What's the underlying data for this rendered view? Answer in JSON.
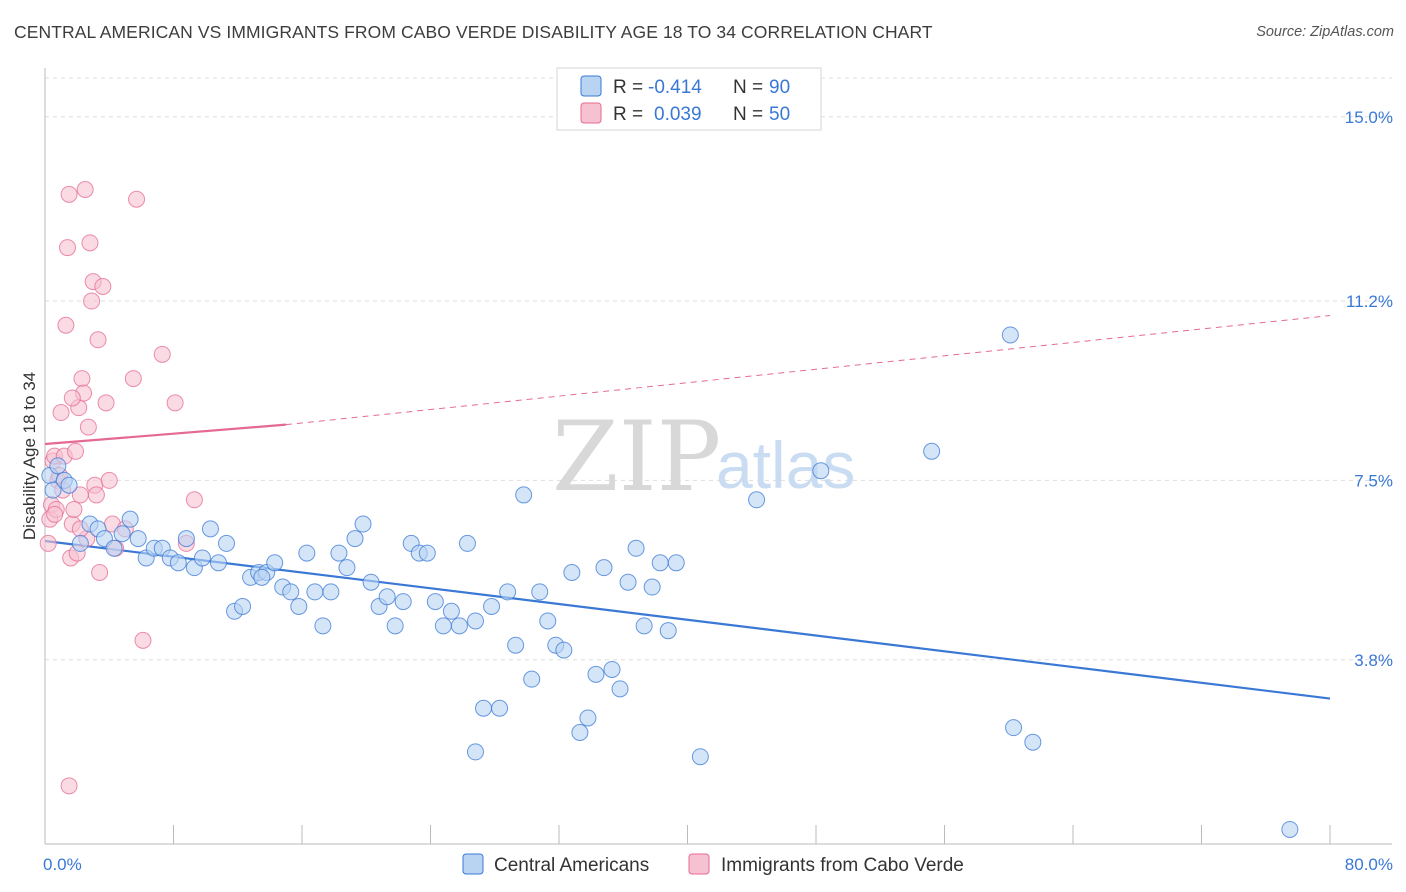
{
  "title": "CENTRAL AMERICAN VS IMMIGRANTS FROM CABO VERDE DISABILITY AGE 18 TO 34 CORRELATION CHART",
  "source": "Source: ZipAtlas.com",
  "watermark": {
    "zip": "ZIP",
    "atlas": "atlas"
  },
  "colors": {
    "blue": "#3a78d6",
    "blue_fill": "#b9d3f3",
    "pink": "#e56a93",
    "pink_fill": "#f6c1d0",
    "grid": "#dddddd"
  },
  "legend": {
    "rows": [
      {
        "r_label": "R =",
        "r_value": "-0.414",
        "n_label": "N =",
        "n_value": "90"
      },
      {
        "r_label": "R =",
        "r_value": "0.039",
        "n_label": "N =",
        "n_value": "50"
      }
    ]
  },
  "chart_data": {
    "type": "scatter",
    "title": "CENTRAL AMERICAN VS IMMIGRANTS FROM CABO VERDE DISABILITY AGE 18 TO 34 CORRELATION CHART",
    "xlabel": "",
    "ylabel": "Disability Age 18 to 34",
    "xlim": [
      0,
      80
    ],
    "ylim": [
      0,
      15.8
    ],
    "x_tick_labels": [
      "0.0%",
      "80.0%"
    ],
    "y_ticks": [
      3.8,
      7.5,
      11.2,
      15.0
    ],
    "y_tick_labels": [
      "3.8%",
      "7.5%",
      "11.2%",
      "15.0%"
    ],
    "grid": "horizontal dashed",
    "legend_position": "top-center",
    "series": [
      {
        "name": "Central Americans",
        "color": "#3a78d6",
        "trend": {
          "x": [
            0,
            80
          ],
          "y": [
            6.25,
            3.0
          ]
        },
        "points": [
          [
            0.3,
            7.6
          ],
          [
            0.5,
            7.3
          ],
          [
            0.8,
            7.8
          ],
          [
            1.2,
            7.5
          ],
          [
            1.5,
            7.4
          ],
          [
            2.2,
            6.2
          ],
          [
            2.8,
            6.6
          ],
          [
            3.3,
            6.5
          ],
          [
            3.7,
            6.3
          ],
          [
            4.3,
            6.1
          ],
          [
            4.8,
            6.4
          ],
          [
            5.3,
            6.7
          ],
          [
            5.8,
            6.3
          ],
          [
            6.3,
            5.9
          ],
          [
            6.8,
            6.1
          ],
          [
            7.3,
            6.1
          ],
          [
            7.8,
            5.9
          ],
          [
            8.3,
            5.8
          ],
          [
            8.8,
            6.3
          ],
          [
            9.3,
            5.7
          ],
          [
            9.8,
            5.9
          ],
          [
            10.3,
            6.5
          ],
          [
            10.8,
            5.8
          ],
          [
            11.3,
            6.2
          ],
          [
            11.8,
            4.8
          ],
          [
            12.3,
            4.9
          ],
          [
            12.8,
            5.5
          ],
          [
            13.3,
            5.6
          ],
          [
            13.8,
            5.6
          ],
          [
            14.3,
            5.8
          ],
          [
            14.8,
            5.3
          ],
          [
            15.3,
            5.2
          ],
          [
            15.8,
            4.9
          ],
          [
            16.3,
            6.0
          ],
          [
            16.8,
            5.2
          ],
          [
            17.3,
            4.5
          ],
          [
            17.8,
            5.2
          ],
          [
            18.3,
            6.0
          ],
          [
            18.8,
            5.7
          ],
          [
            19.3,
            6.3
          ],
          [
            19.8,
            6.6
          ],
          [
            20.3,
            5.4
          ],
          [
            20.8,
            4.9
          ],
          [
            21.3,
            5.1
          ],
          [
            21.8,
            4.5
          ],
          [
            22.3,
            5.0
          ],
          [
            22.8,
            6.2
          ],
          [
            23.3,
            6.0
          ],
          [
            23.8,
            6.0
          ],
          [
            24.3,
            5.0
          ],
          [
            24.8,
            4.5
          ],
          [
            25.3,
            4.8
          ],
          [
            25.8,
            4.5
          ],
          [
            26.3,
            6.2
          ],
          [
            26.8,
            4.6
          ],
          [
            27.3,
            2.8
          ],
          [
            27.8,
            4.9
          ],
          [
            28.3,
            2.8
          ],
          [
            28.8,
            5.2
          ],
          [
            29.3,
            4.1
          ],
          [
            29.8,
            7.2
          ],
          [
            30.3,
            3.4
          ],
          [
            30.8,
            5.2
          ],
          [
            31.3,
            4.6
          ],
          [
            31.8,
            4.1
          ],
          [
            32.3,
            4.0
          ],
          [
            32.8,
            5.6
          ],
          [
            33.3,
            2.3
          ],
          [
            33.8,
            2.6
          ],
          [
            34.3,
            3.5
          ],
          [
            34.8,
            5.7
          ],
          [
            35.3,
            3.6
          ],
          [
            35.8,
            3.2
          ],
          [
            36.3,
            5.4
          ],
          [
            36.8,
            6.1
          ],
          [
            37.3,
            4.5
          ],
          [
            37.8,
            5.3
          ],
          [
            38.3,
            5.8
          ],
          [
            38.8,
            4.4
          ],
          [
            39.3,
            5.8
          ],
          [
            26.8,
            1.9
          ],
          [
            40.8,
            1.8
          ],
          [
            44.3,
            7.1
          ],
          [
            48.3,
            7.7
          ],
          [
            55.2,
            8.1
          ],
          [
            60.1,
            10.5
          ],
          [
            60.3,
            2.4
          ],
          [
            61.5,
            2.1
          ],
          [
            77.5,
            0.3
          ],
          [
            13.5,
            5.5
          ]
        ]
      },
      {
        "name": "Immigrants from Cabo Verde",
        "color": "#e56a93",
        "trend": {
          "x": [
            0,
            15
          ],
          "y": [
            8.25,
            8.65
          ],
          "x_dashed": [
            15,
            80
          ],
          "y_dashed": [
            8.65,
            10.9
          ]
        },
        "points": [
          [
            0.2,
            6.2
          ],
          [
            0.3,
            6.7
          ],
          [
            0.4,
            7.0
          ],
          [
            0.5,
            7.9
          ],
          [
            0.6,
            8.0
          ],
          [
            0.7,
            6.9
          ],
          [
            0.8,
            7.5
          ],
          [
            1.0,
            8.9
          ],
          [
            1.1,
            7.3
          ],
          [
            1.2,
            8.0
          ],
          [
            1.4,
            12.3
          ],
          [
            1.5,
            13.4
          ],
          [
            1.6,
            5.9
          ],
          [
            1.7,
            6.6
          ],
          [
            1.8,
            6.9
          ],
          [
            1.9,
            8.1
          ],
          [
            2.0,
            6.0
          ],
          [
            2.1,
            9.0
          ],
          [
            2.2,
            7.2
          ],
          [
            2.3,
            9.6
          ],
          [
            2.4,
            9.3
          ],
          [
            2.5,
            13.5
          ],
          [
            2.6,
            6.3
          ],
          [
            2.7,
            8.6
          ],
          [
            2.8,
            12.4
          ],
          [
            2.9,
            11.2
          ],
          [
            3.0,
            11.6
          ],
          [
            3.1,
            7.4
          ],
          [
            3.2,
            7.2
          ],
          [
            3.3,
            10.4
          ],
          [
            3.4,
            5.6
          ],
          [
            3.6,
            11.5
          ],
          [
            3.8,
            9.1
          ],
          [
            4.0,
            7.5
          ],
          [
            4.2,
            6.6
          ],
          [
            4.4,
            6.1
          ],
          [
            5.0,
            6.5
          ],
          [
            5.5,
            9.6
          ],
          [
            5.7,
            13.3
          ],
          [
            6.1,
            4.2
          ],
          [
            7.3,
            10.1
          ],
          [
            8.1,
            9.1
          ],
          [
            8.8,
            6.2
          ],
          [
            9.3,
            7.1
          ],
          [
            1.3,
            10.7
          ],
          [
            0.9,
            7.6
          ],
          [
            1.5,
            1.2
          ],
          [
            1.7,
            9.2
          ],
          [
            2.2,
            6.5
          ],
          [
            0.6,
            6.8
          ]
        ]
      }
    ]
  },
  "bottom_legend": [
    {
      "label": "Central Americans"
    },
    {
      "label": "Immigrants from Cabo Verde"
    }
  ]
}
